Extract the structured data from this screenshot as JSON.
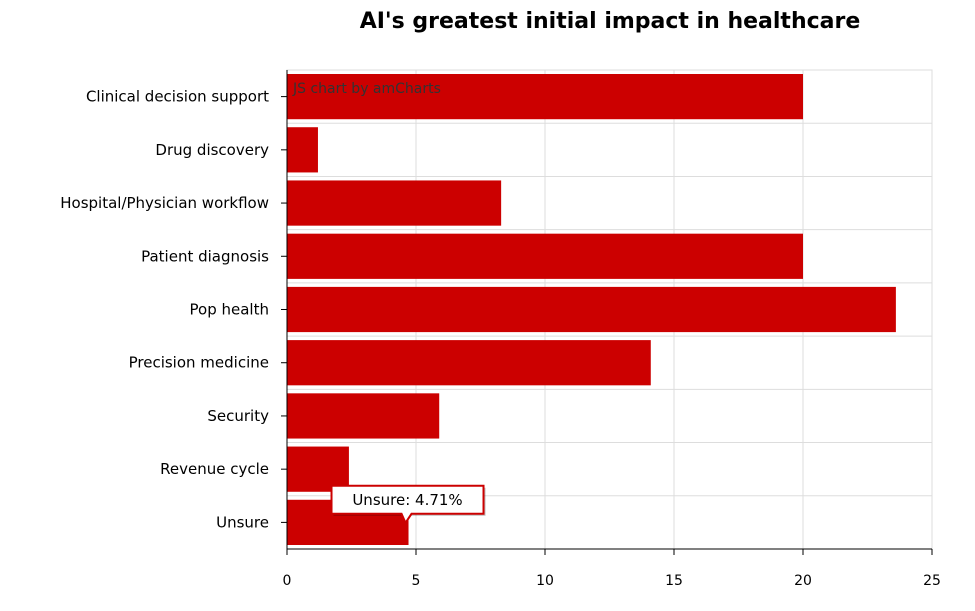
{
  "chart_data": {
    "type": "bar",
    "orientation": "horizontal",
    "title": "AI's greatest initial impact in healthcare",
    "categories": [
      "Clinical decision support",
      "Drug discovery",
      "Hospital/Physician workflow",
      "Patient diagnosis",
      "Pop health",
      "Precision medicine",
      "Security",
      "Revenue cycle",
      "Unsure"
    ],
    "values": [
      20.0,
      1.2,
      8.3,
      20.0,
      23.6,
      14.1,
      5.9,
      2.4,
      4.71
    ],
    "xlim": [
      0,
      25
    ],
    "xticks": [
      0,
      5,
      10,
      15,
      20,
      25
    ],
    "xlabel": "",
    "ylabel": "",
    "grid": true,
    "bar_color": "#cc0000",
    "grid_color": "#dddddd",
    "credit": "JS chart by amCharts",
    "tooltip": {
      "category_index": 8,
      "text": "Unsure: 4.71%",
      "border_color": "#cc0000"
    }
  }
}
